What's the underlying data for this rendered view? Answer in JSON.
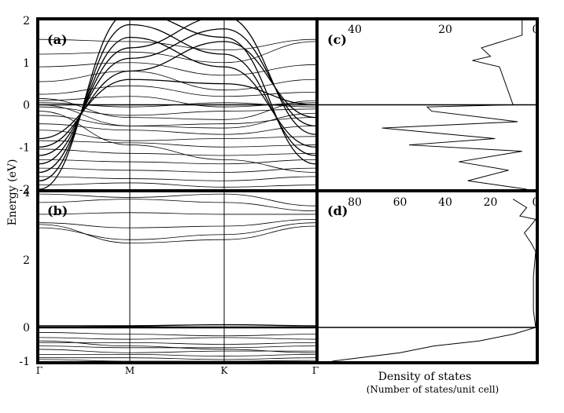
{
  "chart_data": [
    {
      "panel": "(a)",
      "type": "line",
      "ylabel": "Energy (eV)",
      "ylim": [
        -2,
        2
      ],
      "yticks": [
        "2",
        "1",
        "0",
        "-1",
        "-2"
      ],
      "xticks": [
        "Γ",
        "M",
        "K",
        "Γ"
      ],
      "fermi_level": 0,
      "bands": {
        "nodes": [
          0,
          1,
          2,
          3
        ],
        "series": [
          [
            -2.0,
            2.2,
            1.6,
            -1.4
          ],
          [
            -1.8,
            1.9,
            1.2,
            -1.2
          ],
          [
            -1.6,
            1.6,
            0.9,
            -1.0
          ],
          [
            -1.4,
            1.35,
            2.1,
            -0.7
          ],
          [
            -1.2,
            1.1,
            1.8,
            -0.5
          ],
          [
            -1.0,
            0.8,
            1.5,
            -0.3
          ],
          [
            -0.8,
            0.6,
            0.5,
            0.0
          ],
          [
            1.55,
            1.5,
            1.3,
            1.55
          ],
          [
            1.2,
            1.25,
            1.0,
            1.5
          ],
          [
            0.9,
            1.0,
            0.7,
            0.95
          ],
          [
            0.55,
            0.8,
            0.35,
            0.6
          ],
          [
            0.25,
            0.45,
            0.2,
            0.3
          ],
          [
            0.1,
            0.2,
            -0.05,
            0.05
          ],
          [
            0.05,
            -0.05,
            0.05,
            -0.05
          ],
          [
            -0.05,
            -0.25,
            -0.15,
            -0.1
          ],
          [
            -0.25,
            -0.5,
            -0.45,
            -0.3
          ],
          [
            -0.45,
            -0.6,
            -0.7,
            -0.5
          ],
          [
            -0.6,
            -0.85,
            -0.8,
            -0.75
          ],
          [
            -0.85,
            -0.9,
            -1.0,
            -0.95
          ],
          [
            -1.05,
            -1.15,
            -1.2,
            -1.15
          ],
          [
            -1.3,
            -1.35,
            -1.4,
            -1.3
          ],
          [
            -1.5,
            -1.55,
            -1.6,
            -1.5
          ],
          [
            -1.7,
            -1.75,
            -1.8,
            -1.7
          ],
          [
            -1.9,
            -1.85,
            -1.95,
            -1.9
          ],
          [
            0.0,
            -0.5,
            -0.55,
            -0.2
          ],
          [
            -0.15,
            -0.95,
            -1.3,
            -1.6
          ],
          [
            0.15,
            -0.3,
            -0.35,
            0.1
          ]
        ]
      }
    },
    {
      "panel": "(b)",
      "type": "line",
      "ylim": [
        -1,
        4
      ],
      "yticks": [
        "4",
        "2",
        "0",
        "-1"
      ],
      "xticks": [
        "Γ",
        "M",
        "K",
        "Γ"
      ],
      "fermi_level": 0,
      "bands": {
        "nodes": [
          0,
          1,
          2,
          3
        ],
        "series": [
          [
            3.95,
            3.85,
            3.95,
            3.6
          ],
          [
            3.7,
            3.8,
            3.7,
            3.45
          ],
          [
            3.35,
            3.4,
            3.35,
            3.35
          ],
          [
            3.1,
            2.95,
            3.0,
            3.2
          ],
          [
            2.95,
            2.6,
            2.75,
            3.1
          ],
          [
            3.05,
            2.5,
            2.6,
            3.0
          ],
          [
            0.05,
            0.05,
            0.08,
            0.05
          ],
          [
            0.0,
            0.02,
            0.0,
            0.0
          ],
          [
            -0.15,
            -0.2,
            -0.25,
            -0.2
          ],
          [
            -0.3,
            -0.35,
            -0.3,
            -0.35
          ],
          [
            -0.45,
            -0.45,
            -0.5,
            -0.45
          ],
          [
            -0.55,
            -0.6,
            -0.6,
            -0.55
          ],
          [
            -0.65,
            -0.75,
            -0.7,
            -0.7
          ],
          [
            -0.8,
            -0.8,
            -0.85,
            -0.8
          ],
          [
            -0.9,
            -0.9,
            -0.95,
            -0.9
          ],
          [
            -0.95,
            -1.0,
            -1.0,
            -0.98
          ],
          [
            -0.4,
            -0.55,
            -0.65,
            -0.75
          ]
        ]
      }
    },
    {
      "panel": "(c)",
      "type": "line",
      "x_axis": "Density of states",
      "xlim": [
        48,
        0
      ],
      "xticks": [
        "40",
        "20",
        "0"
      ],
      "ylim": [
        -2,
        2
      ],
      "fermi_level": 0,
      "x": [
        3,
        3,
        6,
        12,
        10,
        14,
        8,
        6,
        5,
        24,
        23,
        4,
        34,
        9,
        28,
        3,
        17,
        6,
        15,
        2
      ],
      "y": [
        2.0,
        1.65,
        1.55,
        1.35,
        1.15,
        1.05,
        0.9,
        0.3,
        0.0,
        -0.05,
        -0.15,
        -0.4,
        -0.55,
        -0.8,
        -0.95,
        -1.1,
        -1.35,
        -1.55,
        -1.8,
        -2.0
      ]
    },
    {
      "panel": "(d)",
      "type": "line",
      "x_axis": "Density of states",
      "xlim": [
        96,
        0
      ],
      "xticks": [
        "80",
        "60",
        "40",
        "20",
        "0"
      ],
      "ylim": [
        -1,
        4
      ],
      "fermi_level": 0,
      "x": [
        10,
        4,
        7,
        0,
        3,
        5,
        2,
        0,
        1,
        1,
        0,
        10,
        25,
        45,
        60,
        90
      ],
      "y": [
        3.8,
        3.55,
        3.3,
        3.2,
        2.95,
        2.8,
        2.5,
        2.25,
        1.5,
        0.5,
        0.0,
        -0.2,
        -0.4,
        -0.55,
        -0.75,
        -1.0
      ]
    }
  ],
  "labels": {
    "panel_a": "(a)",
    "panel_b": "(b)",
    "panel_c": "(c)",
    "panel_d": "(d)",
    "ylabel": "Energy (eV)",
    "xlabel_main": "Density of states",
    "xlabel_sub": "(Number of states/unit cell)"
  }
}
